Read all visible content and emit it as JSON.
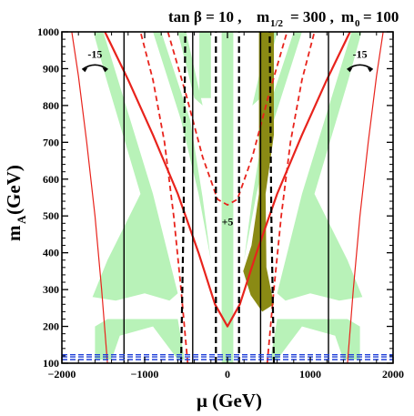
{
  "chart_data": {
    "type": "line",
    "title": {
      "tan_symbol": "tan β = 10 ,",
      "m_half_main": "m",
      "m_half_sub": "1/2",
      "m_half_val": "= 300 ,",
      "m0_main": "m",
      "m0_sub": "0",
      "m0_val": "= 100"
    },
    "xlabel": "μ (GeV)",
    "ylabel_main": "m",
    "ylabel_sub": "A",
    "ylabel_unit": " (GeV)",
    "xlim": [
      -2000,
      2000
    ],
    "ylim": [
      100,
      1000
    ],
    "xticks": [
      -2000,
      -1000,
      0,
      1000,
      2000
    ],
    "xtick_labels": [
      "−2000",
      "−1000",
      "0",
      "1000",
      "2000"
    ],
    "yticks": [
      100,
      200,
      300,
      400,
      500,
      600,
      700,
      800,
      900,
      1000
    ],
    "ytick_labels": [
      "100",
      "200",
      "300",
      "400",
      "500",
      "600",
      "700",
      "800",
      "900",
      "1000"
    ],
    "colors": {
      "relic_band": "#b8f2b8",
      "excluded_region": "#8a8a14",
      "red_contour": "#e8231c",
      "black_contour": "#000000",
      "blue_limit": "#2040d8"
    },
    "annotations": [
      {
        "text": "-15",
        "x": -1600,
        "y": 930
      },
      {
        "text": "-15",
        "x": 1600,
        "y": 930
      },
      {
        "text": "+5",
        "x": 0,
        "y": 475
      }
    ],
    "series": [
      {
        "style": "red-solid-outer-left",
        "x": [
          -1450,
          -1520,
          -1600,
          -1700,
          -1800,
          -1880
        ],
        "y": [
          100,
          300,
          500,
          700,
          880,
          1000
        ]
      },
      {
        "style": "red-solid-outer-right",
        "x": [
          1450,
          1520,
          1600,
          1700,
          1800,
          1880
        ],
        "y": [
          100,
          300,
          500,
          700,
          880,
          1000
        ]
      },
      {
        "style": "red-solid-v",
        "x": [
          -1480,
          -1200,
          -900,
          -600,
          -350,
          -150,
          0,
          150,
          350,
          600,
          900,
          1200,
          1480
        ],
        "y": [
          1000,
          870,
          720,
          560,
          400,
          260,
          200,
          260,
          400,
          560,
          720,
          870,
          1000
        ]
      },
      {
        "style": "red-dashed-left",
        "x": [
          -480,
          -560,
          -650,
          -760,
          -900,
          -1050
        ],
        "y": [
          100,
          300,
          500,
          700,
          870,
          1000
        ]
      },
      {
        "style": "red-dashed-right",
        "x": [
          480,
          560,
          650,
          760,
          900,
          1050
        ],
        "y": [
          100,
          300,
          500,
          700,
          870,
          1000
        ]
      },
      {
        "style": "red-dashed-v",
        "x": [
          -720,
          -500,
          -300,
          -120,
          0,
          120,
          300,
          500,
          720
        ],
        "y": [
          1000,
          830,
          660,
          545,
          530,
          545,
          660,
          830,
          1000
        ]
      },
      {
        "style": "black-solid",
        "x": [
          -1250,
          -1250
        ],
        "y": [
          100,
          1000
        ]
      },
      {
        "style": "black-solid",
        "x": [
          -420,
          -420
        ],
        "y": [
          100,
          1000
        ]
      },
      {
        "style": "black-solid",
        "x": [
          400,
          400
        ],
        "y": [
          100,
          1000
        ]
      },
      {
        "style": "black-solid",
        "x": [
          1220,
          1220
        ],
        "y": [
          100,
          1000
        ]
      },
      {
        "style": "black-dashed",
        "x": [
          -560,
          -530,
          -510
        ],
        "y": [
          100,
          500,
          1000
        ]
      },
      {
        "style": "black-dashed",
        "x": [
          -140,
          -140
        ],
        "y": [
          100,
          1000
        ]
      },
      {
        "style": "black-dashed",
        "x": [
          140,
          140
        ],
        "y": [
          100,
          1000
        ]
      },
      {
        "style": "black-dashed",
        "x": [
          560,
          530,
          510
        ],
        "y": [
          100,
          500,
          1000
        ]
      },
      {
        "style": "blue-dashed",
        "x": [
          -2000,
          2000
        ],
        "y": [
          110,
          110
        ]
      },
      {
        "style": "blue-dashed",
        "x": [
          -2000,
          2000
        ],
        "y": [
          117,
          117
        ]
      },
      {
        "style": "blue-dashed",
        "x": [
          -2000,
          2000
        ],
        "y": [
          123,
          123
        ]
      }
    ],
    "regions": [
      {
        "style": "green-band",
        "points": [
          [
            -1600,
            110
          ],
          [
            -1400,
            110
          ],
          [
            -1300,
            175
          ],
          [
            -900,
            200
          ],
          [
            -600,
            110
          ],
          [
            -520,
            110
          ],
          [
            -600,
            220
          ],
          [
            -1450,
            220
          ],
          [
            -1600,
            200
          ]
        ]
      },
      {
        "style": "green-band",
        "points": [
          [
            1600,
            110
          ],
          [
            1400,
            110
          ],
          [
            1300,
            175
          ],
          [
            900,
            200
          ],
          [
            600,
            110
          ],
          [
            520,
            110
          ],
          [
            600,
            220
          ],
          [
            1450,
            220
          ],
          [
            1600,
            200
          ]
        ]
      },
      {
        "style": "green-band",
        "points": [
          [
            -1620,
            1000
          ],
          [
            -1500,
            1000
          ],
          [
            -900,
            560
          ],
          [
            -600,
            290
          ],
          [
            -700,
            270
          ],
          [
            -1000,
            290
          ],
          [
            -1350,
            270
          ],
          [
            -1630,
            280
          ],
          [
            -1450,
            380
          ],
          [
            -1050,
            560
          ],
          [
            -1460,
            870
          ]
        ]
      },
      {
        "style": "green-band",
        "points": [
          [
            1620,
            1000
          ],
          [
            1500,
            1000
          ],
          [
            900,
            560
          ],
          [
            600,
            290
          ],
          [
            700,
            270
          ],
          [
            1000,
            290
          ],
          [
            1350,
            270
          ],
          [
            1630,
            280
          ],
          [
            1450,
            380
          ],
          [
            1050,
            560
          ],
          [
            1460,
            870
          ]
        ]
      },
      {
        "style": "green-band",
        "points": [
          [
            -900,
            1000
          ],
          [
            -800,
            1000
          ],
          [
            -450,
            760
          ],
          [
            -300,
            550
          ],
          [
            -200,
            380
          ],
          [
            -350,
            560
          ],
          [
            -560,
            760
          ]
        ]
      },
      {
        "style": "green-band",
        "points": [
          [
            900,
            1000
          ],
          [
            800,
            1000
          ],
          [
            450,
            760
          ],
          [
            300,
            550
          ],
          [
            200,
            380
          ],
          [
            350,
            560
          ],
          [
            560,
            760
          ]
        ]
      },
      {
        "style": "green-band",
        "points": [
          [
            -600,
            1000
          ],
          [
            -500,
            1000
          ],
          [
            -300,
            800
          ],
          [
            -400,
            820
          ]
        ]
      },
      {
        "style": "green-band",
        "points": [
          [
            600,
            1000
          ],
          [
            500,
            1000
          ],
          [
            300,
            800
          ],
          [
            400,
            820
          ]
        ]
      },
      {
        "style": "green-band",
        "points": [
          [
            -70,
            1000
          ],
          [
            70,
            1000
          ],
          [
            70,
            100
          ],
          [
            -70,
            100
          ]
        ]
      },
      {
        "style": "green-band",
        "points": [
          [
            -340,
            1000
          ],
          [
            -200,
            1000
          ],
          [
            -200,
            820
          ],
          [
            -340,
            820
          ]
        ]
      },
      {
        "style": "excluded",
        "points": [
          [
            380,
            1000
          ],
          [
            560,
            1000
          ],
          [
            560,
            720
          ],
          [
            460,
            560
          ],
          [
            470,
            360
          ],
          [
            560,
            260
          ],
          [
            420,
            240
          ],
          [
            280,
            285
          ],
          [
            190,
            350
          ],
          [
            290,
            420
          ],
          [
            380,
            560
          ]
        ]
      }
    ]
  }
}
